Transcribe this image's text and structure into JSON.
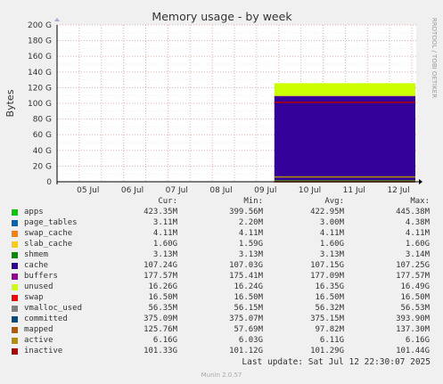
{
  "chart_data": {
    "type": "area",
    "title": "Memory usage - by week",
    "ylabel": "Bytes",
    "side_label": "RRDTOOL / TOBI OETIKER",
    "ylim": [
      0,
      200
    ],
    "yticks": [
      "0",
      "20 G",
      "40 G",
      "60 G",
      "80 G",
      "100 G",
      "120 G",
      "140 G",
      "160 G",
      "180 G",
      "200 G"
    ],
    "xticks": [
      "05 Jul",
      "06 Jul",
      "07 Jul",
      "08 Jul",
      "09 Jul",
      "10 Jul",
      "11 Jul",
      "12 Jul"
    ],
    "data_start": "09 Jul",
    "stack_order": [
      "apps",
      "page_tables",
      "swap_cache",
      "slab_cache",
      "shmem",
      "cache",
      "buffers",
      "unused"
    ],
    "lines": [
      "swap",
      "vmalloc_used",
      "committed",
      "mapped",
      "active",
      "inactive"
    ],
    "columns": [
      "Cur:",
      "Min:",
      "Avg:",
      "Max:"
    ],
    "series": [
      {
        "name": "apps",
        "color": "#00cc00",
        "cur": "423.35M",
        "min": "399.56M",
        "avg": "422.95M",
        "max": "445.38M",
        "value_g": 0.42
      },
      {
        "name": "page_tables",
        "color": "#0066b3",
        "cur": "3.11M",
        "min": "2.20M",
        "avg": "3.00M",
        "max": "4.38M",
        "value_g": 0.003
      },
      {
        "name": "swap_cache",
        "color": "#ff8000",
        "cur": "4.11M",
        "min": "4.11M",
        "avg": "4.11M",
        "max": "4.11M",
        "value_g": 0.004
      },
      {
        "name": "slab_cache",
        "color": "#ffcc00",
        "cur": "1.60G",
        "min": "1.59G",
        "avg": "1.60G",
        "max": "1.60G",
        "value_g": 1.6
      },
      {
        "name": "shmem",
        "color": "#008f00",
        "cur": "3.13M",
        "min": "3.13M",
        "avg": "3.13M",
        "max": "3.14M",
        "value_g": 0.003
      },
      {
        "name": "cache",
        "color": "#330099",
        "cur": "107.24G",
        "min": "107.03G",
        "avg": "107.15G",
        "max": "107.25G",
        "value_g": 107.24
      },
      {
        "name": "buffers",
        "color": "#990099",
        "cur": "177.57M",
        "min": "175.41M",
        "avg": "177.09M",
        "max": "177.57M",
        "value_g": 0.18
      },
      {
        "name": "unused",
        "color": "#ccff00",
        "cur": "16.26G",
        "min": "16.24G",
        "avg": "16.35G",
        "max": "16.49G",
        "value_g": 16.26
      },
      {
        "name": "swap",
        "color": "#ff0000",
        "cur": "16.50M",
        "min": "16.50M",
        "avg": "16.50M",
        "max": "16.50M",
        "value_g": 0.0165
      },
      {
        "name": "vmalloc_used",
        "color": "#808080",
        "cur": "56.35M",
        "min": "56.15M",
        "avg": "56.32M",
        "max": "56.53M",
        "value_g": 0.056
      },
      {
        "name": "committed",
        "color": "#004d80",
        "cur": "375.09M",
        "min": "375.07M",
        "avg": "375.15M",
        "max": "393.90M",
        "value_g": 0.375
      },
      {
        "name": "mapped",
        "color": "#b35900",
        "cur": "125.76M",
        "min": "57.69M",
        "avg": "97.82M",
        "max": "137.30M",
        "value_g": 0.126
      },
      {
        "name": "active",
        "color": "#b38f00",
        "cur": "6.16G",
        "min": "6.03G",
        "avg": "6.11G",
        "max": "6.16G",
        "value_g": 6.16
      },
      {
        "name": "inactive",
        "color": "#b30000",
        "cur": "101.33G",
        "min": "101.12G",
        "avg": "101.29G",
        "max": "101.44G",
        "value_g": 101.33
      }
    ]
  },
  "last_update": "Last update: Sat Jul 12 22:30:07 2025",
  "version": "Munin 2.0.57"
}
